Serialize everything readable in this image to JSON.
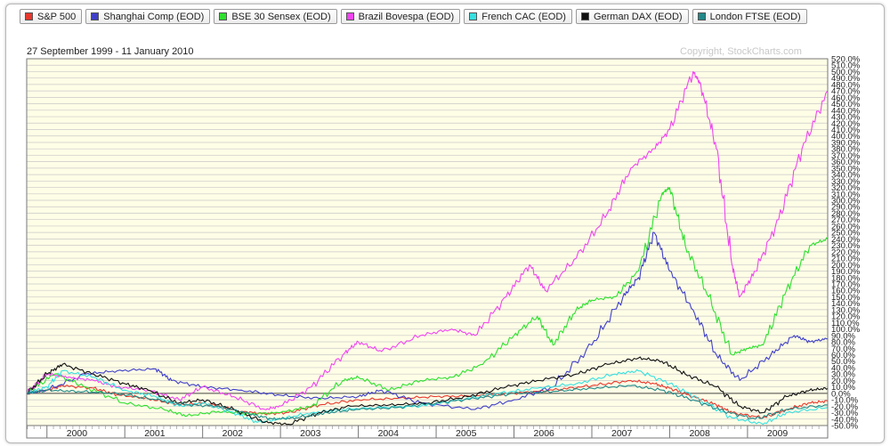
{
  "date_range": "27 September 1999 - 11 January 2010",
  "copyright": "Copyright, StockCharts.com",
  "legend": [
    {
      "label": "S&P 500",
      "color": "#e8382d"
    },
    {
      "label": "Shanghai Comp (EOD)",
      "color": "#3f3fc8"
    },
    {
      "label": "BSE 30 Sensex (EOD)",
      "color": "#2fe02f"
    },
    {
      "label": "Brazil Bovespa (EOD)",
      "color": "#f046f0"
    },
    {
      "label": "French CAC (EOD)",
      "color": "#37e0e0"
    },
    {
      "label": "German DAX (EOD)",
      "color": "#111111"
    },
    {
      "label": "London FTSE (EOD)",
      "color": "#208a8a"
    }
  ],
  "chart_data": {
    "type": "line",
    "y_unit": "%",
    "ylim": [
      -50,
      520
    ],
    "y_tick_step": 10,
    "y_label_first": 520,
    "y_label_step": -10,
    "zero_line": 0,
    "xlim": [
      1999.74,
      2010.03
    ],
    "x_tick_labels": [
      "2000",
      "2001",
      "2002",
      "2003",
      "2004",
      "2005",
      "2006",
      "2007",
      "2008",
      "2009"
    ],
    "grid": true,
    "series": [
      {
        "name": "S&P 500",
        "color": "#e8382d",
        "points": [
          [
            1999.74,
            0
          ],
          [
            2000.0,
            5
          ],
          [
            2000.2,
            12
          ],
          [
            2000.6,
            8
          ],
          [
            2000.9,
            -2
          ],
          [
            2001.3,
            -8
          ],
          [
            2001.7,
            -18
          ],
          [
            2002.0,
            -15
          ],
          [
            2002.5,
            -28
          ],
          [
            2002.8,
            -32
          ],
          [
            2003.1,
            -30
          ],
          [
            2003.5,
            -18
          ],
          [
            2004.0,
            -10
          ],
          [
            2004.5,
            -8
          ],
          [
            2005.0,
            -5
          ],
          [
            2005.5,
            -4
          ],
          [
            2006.0,
            0
          ],
          [
            2006.5,
            5
          ],
          [
            2007.0,
            12
          ],
          [
            2007.5,
            20
          ],
          [
            2007.8,
            15
          ],
          [
            2008.0,
            8
          ],
          [
            2008.3,
            -5
          ],
          [
            2008.6,
            -18
          ],
          [
            2008.8,
            -30
          ],
          [
            2009.2,
            -38
          ],
          [
            2009.5,
            -25
          ],
          [
            2009.8,
            -15
          ],
          [
            2010.03,
            -12
          ]
        ]
      },
      {
        "name": "Shanghai Comp (EOD)",
        "color": "#3f3fc8",
        "points": [
          [
            1999.74,
            0
          ],
          [
            2000.0,
            5
          ],
          [
            2000.5,
            30
          ],
          [
            2000.9,
            35
          ],
          [
            2001.4,
            38
          ],
          [
            2001.6,
            20
          ],
          [
            2002.0,
            10
          ],
          [
            2002.5,
            5
          ],
          [
            2003.0,
            -3
          ],
          [
            2003.5,
            -8
          ],
          [
            2004.0,
            -5
          ],
          [
            2004.3,
            5
          ],
          [
            2004.8,
            -15
          ],
          [
            2005.5,
            -25
          ],
          [
            2006.0,
            -10
          ],
          [
            2006.5,
            10
          ],
          [
            2007.0,
            75
          ],
          [
            2007.4,
            150
          ],
          [
            2007.6,
            180
          ],
          [
            2007.8,
            250
          ],
          [
            2008.0,
            190
          ],
          [
            2008.3,
            130
          ],
          [
            2008.6,
            60
          ],
          [
            2008.9,
            20
          ],
          [
            2009.3,
            60
          ],
          [
            2009.6,
            90
          ],
          [
            2009.8,
            80
          ],
          [
            2010.03,
            85
          ]
        ]
      },
      {
        "name": "BSE 30 Sensex (EOD)",
        "color": "#2fe02f",
        "points": [
          [
            1999.74,
            0
          ],
          [
            2000.1,
            30
          ],
          [
            2000.5,
            10
          ],
          [
            2001.0,
            -15
          ],
          [
            2001.5,
            -25
          ],
          [
            2001.8,
            -35
          ],
          [
            2002.2,
            -28
          ],
          [
            2002.6,
            -32
          ],
          [
            2003.0,
            -30
          ],
          [
            2003.4,
            -20
          ],
          [
            2003.8,
            20
          ],
          [
            2004.0,
            25
          ],
          [
            2004.4,
            5
          ],
          [
            2004.8,
            20
          ],
          [
            2005.2,
            25
          ],
          [
            2005.6,
            45
          ],
          [
            2006.0,
            90
          ],
          [
            2006.3,
            120
          ],
          [
            2006.5,
            75
          ],
          [
            2006.8,
            130
          ],
          [
            2007.0,
            145
          ],
          [
            2007.3,
            150
          ],
          [
            2007.6,
            190
          ],
          [
            2007.9,
            310
          ],
          [
            2008.0,
            320
          ],
          [
            2008.2,
            230
          ],
          [
            2008.5,
            150
          ],
          [
            2008.8,
            60
          ],
          [
            2009.0,
            70
          ],
          [
            2009.2,
            75
          ],
          [
            2009.5,
            160
          ],
          [
            2009.8,
            230
          ],
          [
            2010.03,
            240
          ]
        ]
      },
      {
        "name": "Brazil Bovespa (EOD)",
        "color": "#f046f0",
        "points": [
          [
            1999.74,
            0
          ],
          [
            2000.0,
            30
          ],
          [
            2000.3,
            25
          ],
          [
            2000.6,
            20
          ],
          [
            2000.9,
            10
          ],
          [
            2001.3,
            5
          ],
          [
            2001.7,
            -10
          ],
          [
            2002.0,
            10
          ],
          [
            2002.4,
            -5
          ],
          [
            2002.8,
            -25
          ],
          [
            2003.0,
            -20
          ],
          [
            2003.4,
            10
          ],
          [
            2003.8,
            60
          ],
          [
            2004.0,
            80
          ],
          [
            2004.3,
            65
          ],
          [
            2004.8,
            90
          ],
          [
            2005.2,
            100
          ],
          [
            2005.5,
            90
          ],
          [
            2005.9,
            150
          ],
          [
            2006.2,
            200
          ],
          [
            2006.4,
            160
          ],
          [
            2006.8,
            210
          ],
          [
            2007.2,
            280
          ],
          [
            2007.5,
            350
          ],
          [
            2007.8,
            380
          ],
          [
            2008.0,
            410
          ],
          [
            2008.3,
            500
          ],
          [
            2008.4,
            480
          ],
          [
            2008.6,
            380
          ],
          [
            2008.8,
            200
          ],
          [
            2008.9,
            150
          ],
          [
            2009.1,
            190
          ],
          [
            2009.4,
            270
          ],
          [
            2009.7,
            380
          ],
          [
            2010.03,
            470
          ]
        ]
      },
      {
        "name": "French CAC (EOD)",
        "color": "#37e0e0",
        "points": [
          [
            1999.74,
            0
          ],
          [
            2000.0,
            10
          ],
          [
            2000.2,
            35
          ],
          [
            2000.6,
            25
          ],
          [
            2001.0,
            5
          ],
          [
            2001.4,
            -5
          ],
          [
            2001.7,
            -20
          ],
          [
            2002.0,
            -15
          ],
          [
            2002.4,
            -30
          ],
          [
            2002.7,
            -45
          ],
          [
            2003.0,
            -40
          ],
          [
            2003.4,
            -30
          ],
          [
            2003.8,
            -25
          ],
          [
            2004.3,
            -22
          ],
          [
            2004.8,
            -20
          ],
          [
            2005.3,
            -10
          ],
          [
            2005.8,
            0
          ],
          [
            2006.3,
            8
          ],
          [
            2006.8,
            15
          ],
          [
            2007.3,
            30
          ],
          [
            2007.6,
            35
          ],
          [
            2008.0,
            15
          ],
          [
            2008.4,
            -10
          ],
          [
            2008.8,
            -38
          ],
          [
            2009.2,
            -48
          ],
          [
            2009.5,
            -30
          ],
          [
            2010.03,
            -22
          ]
        ]
      },
      {
        "name": "German DAX (EOD)",
        "color": "#111111",
        "points": [
          [
            1999.74,
            0
          ],
          [
            2000.0,
            30
          ],
          [
            2000.2,
            45
          ],
          [
            2000.6,
            30
          ],
          [
            2001.0,
            15
          ],
          [
            2001.3,
            5
          ],
          [
            2001.7,
            -15
          ],
          [
            2002.0,
            -10
          ],
          [
            2002.4,
            -25
          ],
          [
            2002.8,
            -45
          ],
          [
            2003.1,
            -48
          ],
          [
            2003.5,
            -30
          ],
          [
            2003.9,
            -20
          ],
          [
            2004.4,
            -18
          ],
          [
            2004.9,
            -15
          ],
          [
            2005.4,
            -5
          ],
          [
            2005.9,
            10
          ],
          [
            2006.3,
            20
          ],
          [
            2006.8,
            30
          ],
          [
            2007.2,
            45
          ],
          [
            2007.6,
            55
          ],
          [
            2007.9,
            50
          ],
          [
            2008.2,
            30
          ],
          [
            2008.6,
            10
          ],
          [
            2008.9,
            -20
          ],
          [
            2009.2,
            -30
          ],
          [
            2009.5,
            -5
          ],
          [
            2009.8,
            5
          ],
          [
            2010.03,
            8
          ]
        ]
      },
      {
        "name": "London FTSE (EOD)",
        "color": "#208a8a",
        "points": [
          [
            1999.74,
            0
          ],
          [
            2000.0,
            5
          ],
          [
            2000.4,
            3
          ],
          [
            2000.9,
            0
          ],
          [
            2001.4,
            -10
          ],
          [
            2001.8,
            -18
          ],
          [
            2002.2,
            -20
          ],
          [
            2002.6,
            -32
          ],
          [
            2002.9,
            -40
          ],
          [
            2003.2,
            -38
          ],
          [
            2003.6,
            -30
          ],
          [
            2004.0,
            -25
          ],
          [
            2004.5,
            -22
          ],
          [
            2005.0,
            -15
          ],
          [
            2005.5,
            -8
          ],
          [
            2006.0,
            0
          ],
          [
            2006.5,
            3
          ],
          [
            2007.0,
            8
          ],
          [
            2007.5,
            12
          ],
          [
            2007.9,
            5
          ],
          [
            2008.3,
            -10
          ],
          [
            2008.7,
            -28
          ],
          [
            2009.1,
            -40
          ],
          [
            2009.5,
            -25
          ],
          [
            2010.03,
            -18
          ]
        ]
      }
    ]
  }
}
